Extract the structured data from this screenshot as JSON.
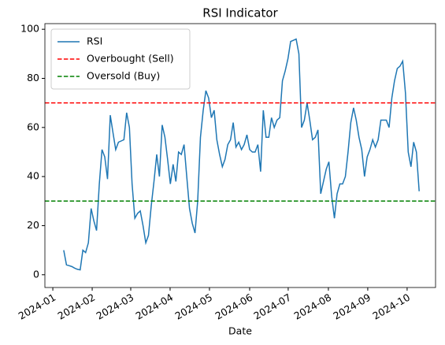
{
  "chart_data": {
    "type": "line",
    "title": "RSI Indicator",
    "xlabel": "Date",
    "series": [
      {
        "name": "RSI",
        "color": "#1f77b4",
        "values": [
          10,
          4,
          3.7,
          3.3,
          2.7,
          2.2,
          2,
          10,
          9,
          13,
          27,
          22,
          18,
          37,
          51,
          48,
          39,
          65,
          58,
          51,
          54,
          54.5,
          55,
          66,
          60,
          37,
          23,
          25,
          26,
          20,
          13,
          16,
          28,
          38,
          49,
          40,
          61,
          56,
          47,
          37,
          45,
          38,
          50,
          49,
          53,
          40,
          27,
          21,
          17,
          30,
          56,
          67,
          75,
          72,
          64,
          67,
          55,
          49,
          44,
          47,
          53,
          55,
          62,
          52,
          54,
          51,
          53,
          57,
          51,
          50,
          50,
          53,
          42,
          67,
          56,
          56,
          64,
          60,
          63,
          64,
          79,
          83,
          88,
          95,
          95.5,
          96,
          90,
          60,
          63,
          70,
          63,
          55,
          56,
          59,
          33,
          38,
          43,
          46,
          32,
          23,
          33,
          37,
          37,
          40,
          50,
          62,
          68,
          63,
          56,
          51,
          40,
          48,
          51,
          55,
          52,
          55,
          63,
          63,
          63,
          60,
          72,
          79,
          84,
          85,
          87,
          74,
          50,
          44,
          54,
          50,
          34
        ]
      }
    ],
    "hlines": [
      {
        "name": "Overbought (Sell)",
        "value": 70,
        "color": "#ff0000"
      },
      {
        "name": "Oversold (Buy)",
        "value": 30,
        "color": "#008000"
      }
    ],
    "xlim": [
      -6.9,
      136.0
    ],
    "xticks": [
      {
        "value": -4.0,
        "label": "2024-01"
      },
      {
        "value": 10.4,
        "label": "2024-02"
      },
      {
        "value": 24.5,
        "label": "2024-03"
      },
      {
        "value": 38.9,
        "label": "2024-04"
      },
      {
        "value": 53.3,
        "label": "2024-05"
      },
      {
        "value": 68.0,
        "label": "2024-06"
      },
      {
        "value": 82.1,
        "label": "2024-07"
      },
      {
        "value": 96.8,
        "label": "2024-08"
      },
      {
        "value": 111.2,
        "label": "2024-09"
      },
      {
        "value": 125.6,
        "label": "2024-10"
      }
    ],
    "ylim": [
      -5.2,
      102.3
    ],
    "yticks": [
      0,
      20,
      40,
      60,
      80,
      100
    ],
    "legend": "upper left"
  }
}
